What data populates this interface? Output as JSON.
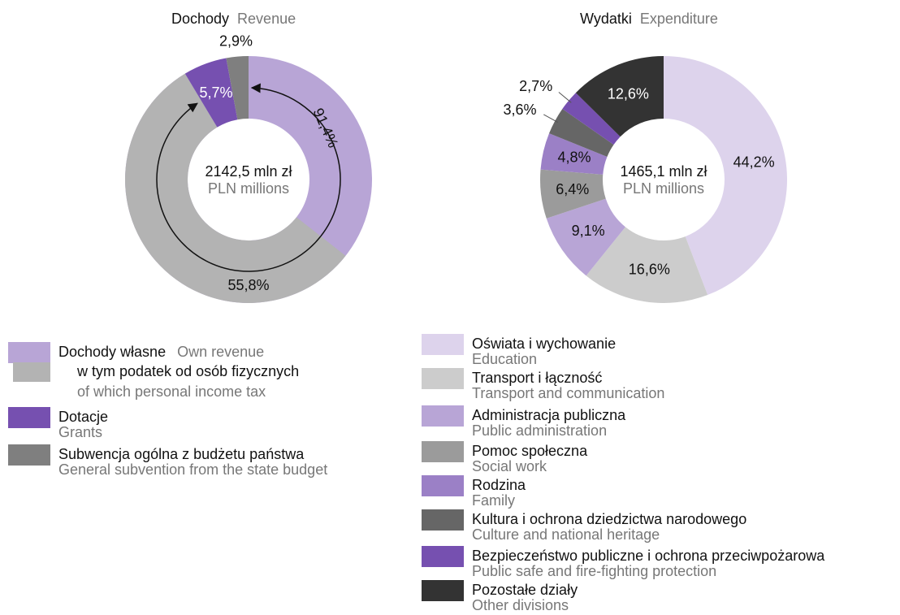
{
  "chart_data": [
    {
      "type": "donut",
      "title": "Dochody",
      "subtitle": "Revenue",
      "center_label": "2142,5 mln zł",
      "center_sublabel": "PLN millions",
      "series": [
        {
          "name": "Dochody własne",
          "name_en": "Own revenue",
          "color": "#b8a5d6",
          "value": 91.4,
          "value_label": "91,4%",
          "part": {
            "name": "w tym podatek od osób fizycznych",
            "name_en": "of which personal income tax",
            "color": "#b3b3b3",
            "value": 55.8,
            "value_label": "55,8%"
          }
        },
        {
          "name": "Dotacje",
          "name_en": "Grants",
          "color": "#7650b0",
          "value": 5.7,
          "value_label": "5,7%"
        },
        {
          "name": "Subwencja ogólna z budżetu państwa",
          "name_en": "General subvention from the state budget",
          "color": "#7f7f7f",
          "value": 2.9,
          "value_label": "2,9%"
        }
      ]
    },
    {
      "type": "donut",
      "title": "Wydatki",
      "subtitle": "Expenditure",
      "center_label": "1465,1 mln zł",
      "center_sublabel": "PLN millions",
      "series": [
        {
          "name": "Oświata i wychowanie",
          "name_en": "Education",
          "color": "#ddd3ec",
          "value": 44.2,
          "value_label": "44,2%"
        },
        {
          "name": "Transport i łączność",
          "name_en": "Transport and communication",
          "color": "#cccccc",
          "value": 16.6,
          "value_label": "16,6%"
        },
        {
          "name": "Administracja publiczna",
          "name_en": "Public administration",
          "color": "#b8a5d6",
          "value": 9.1,
          "value_label": "9,1%"
        },
        {
          "name": "Pomoc społeczna",
          "name_en": "Social work",
          "color": "#9b9b9b",
          "value": 6.4,
          "value_label": "6,4%"
        },
        {
          "name": "Rodzina",
          "name_en": "Family",
          "color": "#9b80c6",
          "value": 4.8,
          "value_label": "4,8%"
        },
        {
          "name": "Kultura i ochrona dziedzictwa narodowego",
          "name_en": "Culture and national heritage",
          "color": "#666666",
          "value": 3.6,
          "value_label": "3,6%"
        },
        {
          "name": "Bezpieczeństwo publiczne i ochrona przeciwpożarowa",
          "name_en": "Public safe and fire-fighting protection",
          "color": "#7650b0",
          "value": 2.7,
          "value_label": "2,7%"
        },
        {
          "name": "Pozostałe działy",
          "name_en": "Other divisions",
          "color": "#333333",
          "value": 12.6,
          "value_label": "12,6%"
        }
      ]
    }
  ]
}
